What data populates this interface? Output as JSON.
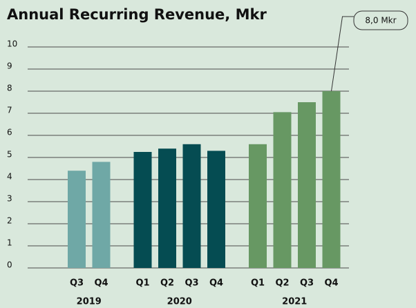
{
  "chart_data": {
    "type": "bar",
    "title": "Annual Recurring Revenue, Mkr",
    "series": [
      {
        "name": "2019",
        "color": "#6fa8a6",
        "categories": [
          "Q3",
          "Q4"
        ],
        "values": [
          4.4,
          4.8
        ]
      },
      {
        "name": "2020",
        "color": "#054c52",
        "categories": [
          "Q1",
          "Q2",
          "Q3",
          "Q4"
        ],
        "values": [
          5.25,
          5.4,
          5.6,
          5.3
        ]
      },
      {
        "name": "2021",
        "color": "#679863",
        "categories": [
          "Q1",
          "Q2",
          "Q3",
          "Q4"
        ],
        "values": [
          5.6,
          7.05,
          7.5,
          8.0
        ]
      }
    ],
    "annotation": "8,0 Mkr",
    "ylim": [
      0,
      10
    ],
    "yticks": [
      0,
      1,
      2,
      3,
      4,
      5,
      6,
      7,
      8,
      9,
      10
    ],
    "grid": true
  }
}
